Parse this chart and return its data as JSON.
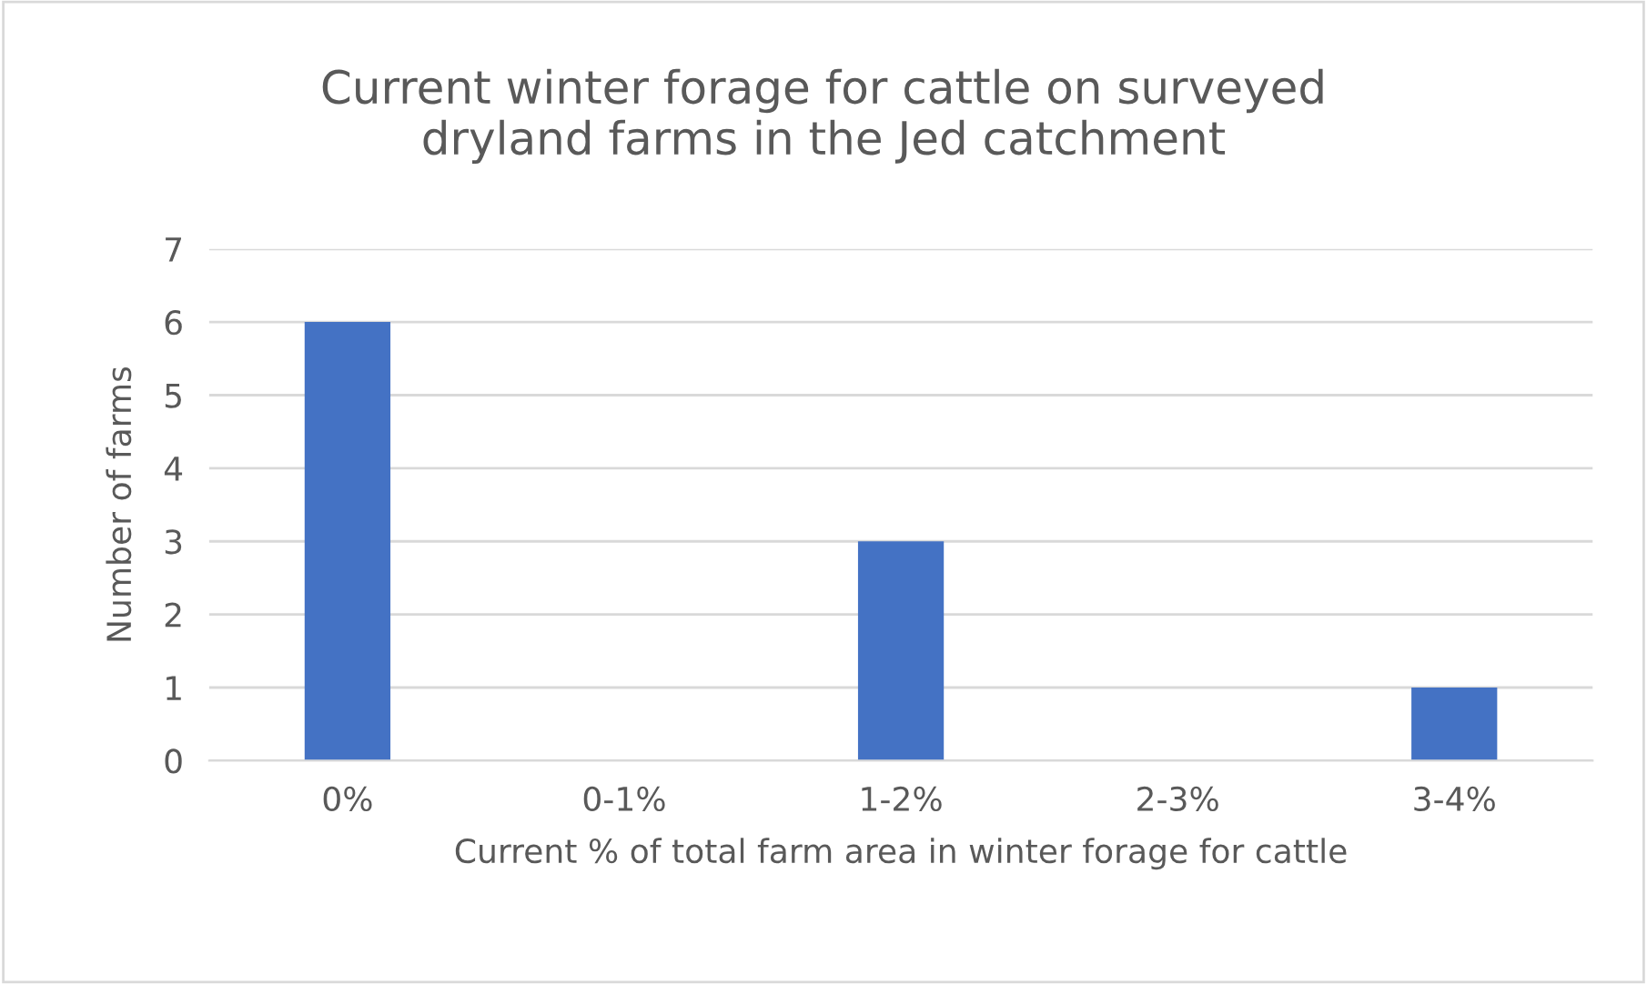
{
  "chart_data": {
    "type": "bar",
    "title": "Current winter forage for cattle on surveyed\ndryland farms in the Jed catchment",
    "xlabel": "Current % of total farm area in winter forage for cattle",
    "ylabel": "Number of farms",
    "categories": [
      "0%",
      "0-1%",
      "1-2%",
      "2-3%",
      "3-4%"
    ],
    "values": [
      6,
      0,
      3,
      0,
      1
    ],
    "color": "#4472c4",
    "ylim": [
      0,
      7
    ],
    "yticks": [
      0,
      1,
      2,
      3,
      4,
      5,
      6,
      7
    ],
    "grid": "y",
    "legend": false
  }
}
